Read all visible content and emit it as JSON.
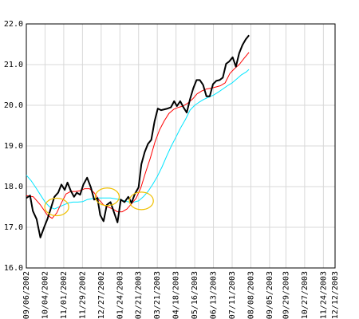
{
  "chart_data": {
    "type": "line",
    "title": "",
    "xlabel": "",
    "ylabel": "",
    "ylim": [
      16.0,
      22.0
    ],
    "y_ticks": [
      "16.0",
      "17.0",
      "18.0",
      "19.0",
      "20.0",
      "21.0",
      "22.0"
    ],
    "grid": true,
    "x_tick_labels": [
      "09/06/2002",
      "10/04/2002",
      "11/01/2002",
      "11/29/2002",
      "12/27/2002",
      "01/24/2003",
      "02/21/2003",
      "03/21/2003",
      "04/18/2003",
      "05/16/2003",
      "06/13/2003",
      "07/11/2003",
      "08/08/2003",
      "09/05/2003",
      "09/29/2003",
      "10/27/2003",
      "11/24/2003",
      "12/12/2003"
    ],
    "x_tick_weeks": [
      0,
      4,
      8,
      12,
      16,
      20,
      24,
      28,
      32,
      36,
      40,
      44,
      48,
      52,
      55.5,
      59.5,
      63.5,
      66
    ],
    "x_range_weeks": [
      0,
      66
    ],
    "series": [
      {
        "color": "#000000",
        "width": 2,
        "points": [
          [
            0,
            17.72
          ],
          [
            0.8,
            17.78
          ],
          [
            1.4,
            17.4
          ],
          [
            2.2,
            17.2
          ],
          [
            3,
            16.75
          ],
          [
            3.8,
            17.0
          ],
          [
            4.5,
            17.2
          ],
          [
            5.2,
            17.45
          ],
          [
            6,
            17.75
          ],
          [
            6.8,
            17.85
          ],
          [
            7.5,
            18.05
          ],
          [
            8.2,
            17.92
          ],
          [
            8.8,
            18.1
          ],
          [
            9.5,
            17.9
          ],
          [
            10.2,
            17.75
          ],
          [
            10.8,
            17.85
          ],
          [
            11.5,
            17.8
          ],
          [
            12.2,
            18.05
          ],
          [
            13,
            18.22
          ],
          [
            13.8,
            17.98
          ],
          [
            14.5,
            17.68
          ],
          [
            15.2,
            17.72
          ],
          [
            15.8,
            17.3
          ],
          [
            16.5,
            17.15
          ],
          [
            17.2,
            17.55
          ],
          [
            18,
            17.62
          ],
          [
            18.8,
            17.35
          ],
          [
            19.5,
            17.12
          ],
          [
            20.2,
            17.68
          ],
          [
            21,
            17.62
          ],
          [
            21.8,
            17.75
          ],
          [
            22.5,
            17.6
          ],
          [
            23.2,
            17.82
          ],
          [
            24,
            17.98
          ],
          [
            24.6,
            18.55
          ],
          [
            25.3,
            18.85
          ],
          [
            26,
            19.05
          ],
          [
            26.7,
            19.15
          ],
          [
            27.4,
            19.6
          ],
          [
            28.1,
            19.92
          ],
          [
            28.8,
            19.88
          ],
          [
            29.5,
            19.9
          ],
          [
            30.2,
            19.92
          ],
          [
            30.9,
            19.95
          ],
          [
            31.6,
            20.1
          ],
          [
            32.2,
            19.98
          ],
          [
            32.9,
            20.1
          ],
          [
            33.6,
            19.95
          ],
          [
            34.3,
            19.82
          ],
          [
            35,
            20.15
          ],
          [
            35.7,
            20.42
          ],
          [
            36.4,
            20.62
          ],
          [
            37.1,
            20.62
          ],
          [
            37.8,
            20.5
          ],
          [
            38.5,
            20.22
          ],
          [
            39.2,
            20.22
          ],
          [
            39.9,
            20.52
          ],
          [
            40.6,
            20.6
          ],
          [
            41.3,
            20.62
          ],
          [
            42,
            20.68
          ],
          [
            42.7,
            21.02
          ],
          [
            43.4,
            21.08
          ],
          [
            44.1,
            21.18
          ],
          [
            44.8,
            20.95
          ],
          [
            45.5,
            21.28
          ],
          [
            46.2,
            21.48
          ],
          [
            46.9,
            21.62
          ],
          [
            47.6,
            21.72
          ]
        ]
      },
      {
        "color": "#ff0000",
        "width": 1,
        "points": [
          [
            0,
            17.78
          ],
          [
            1.5,
            17.75
          ],
          [
            3,
            17.55
          ],
          [
            4.5,
            17.3
          ],
          [
            5.5,
            17.22
          ],
          [
            6.5,
            17.35
          ],
          [
            7.5,
            17.6
          ],
          [
            8.5,
            17.82
          ],
          [
            9.5,
            17.88
          ],
          [
            10.5,
            17.88
          ],
          [
            11.5,
            17.9
          ],
          [
            12.5,
            17.95
          ],
          [
            13.5,
            17.95
          ],
          [
            14.5,
            17.85
          ],
          [
            15.5,
            17.68
          ],
          [
            16.5,
            17.55
          ],
          [
            17.5,
            17.5
          ],
          [
            18.5,
            17.45
          ],
          [
            19.5,
            17.38
          ],
          [
            20.5,
            17.38
          ],
          [
            21.5,
            17.45
          ],
          [
            22.5,
            17.58
          ],
          [
            23.5,
            17.72
          ],
          [
            24.5,
            17.98
          ],
          [
            25.5,
            18.35
          ],
          [
            26.5,
            18.7
          ],
          [
            27.5,
            19.1
          ],
          [
            28.5,
            19.4
          ],
          [
            29.5,
            19.62
          ],
          [
            30.5,
            19.8
          ],
          [
            31.5,
            19.9
          ],
          [
            32.5,
            19.95
          ],
          [
            33.5,
            19.98
          ],
          [
            34.5,
            20.05
          ],
          [
            35.5,
            20.15
          ],
          [
            36.5,
            20.28
          ],
          [
            37.5,
            20.35
          ],
          [
            38.5,
            20.4
          ],
          [
            39.5,
            20.42
          ],
          [
            40.5,
            20.45
          ],
          [
            41.5,
            20.48
          ],
          [
            42.5,
            20.55
          ],
          [
            43.5,
            20.78
          ],
          [
            44.5,
            20.9
          ],
          [
            45.5,
            21.0
          ],
          [
            46.5,
            21.15
          ],
          [
            47.6,
            21.3
          ]
        ]
      },
      {
        "color": "#00e5ff",
        "width": 1,
        "points": [
          [
            0,
            18.28
          ],
          [
            1,
            18.15
          ],
          [
            2,
            17.98
          ],
          [
            3,
            17.8
          ],
          [
            4,
            17.62
          ],
          [
            5,
            17.5
          ],
          [
            6,
            17.45
          ],
          [
            7,
            17.5
          ],
          [
            8,
            17.55
          ],
          [
            9,
            17.6
          ],
          [
            10,
            17.62
          ],
          [
            11,
            17.62
          ],
          [
            12,
            17.63
          ],
          [
            13,
            17.68
          ],
          [
            14,
            17.7
          ],
          [
            15,
            17.72
          ],
          [
            16,
            17.72
          ],
          [
            17,
            17.72
          ],
          [
            18,
            17.72
          ],
          [
            19,
            17.7
          ],
          [
            20,
            17.68
          ],
          [
            21,
            17.65
          ],
          [
            22,
            17.62
          ],
          [
            23,
            17.62
          ],
          [
            24,
            17.65
          ],
          [
            25,
            17.75
          ],
          [
            26,
            17.88
          ],
          [
            27,
            18.05
          ],
          [
            28,
            18.25
          ],
          [
            29,
            18.48
          ],
          [
            30,
            18.75
          ],
          [
            31,
            19.0
          ],
          [
            32,
            19.22
          ],
          [
            33,
            19.45
          ],
          [
            34,
            19.65
          ],
          [
            35,
            19.88
          ],
          [
            36,
            20.0
          ],
          [
            37,
            20.08
          ],
          [
            38,
            20.15
          ],
          [
            39,
            20.2
          ],
          [
            40,
            20.25
          ],
          [
            41,
            20.32
          ],
          [
            42,
            20.4
          ],
          [
            43,
            20.48
          ],
          [
            44,
            20.55
          ],
          [
            45,
            20.65
          ],
          [
            46,
            20.75
          ],
          [
            47,
            20.82
          ],
          [
            47.6,
            20.88
          ]
        ]
      }
    ],
    "highlight_ellipses": [
      {
        "center": [
          6.5,
          17.5
        ],
        "color": "#f0c000"
      },
      {
        "center": [
          17.3,
          17.75
        ],
        "color": "#f0c000"
      },
      {
        "center": [
          24.6,
          17.65
        ],
        "color": "#f0c000"
      }
    ]
  }
}
